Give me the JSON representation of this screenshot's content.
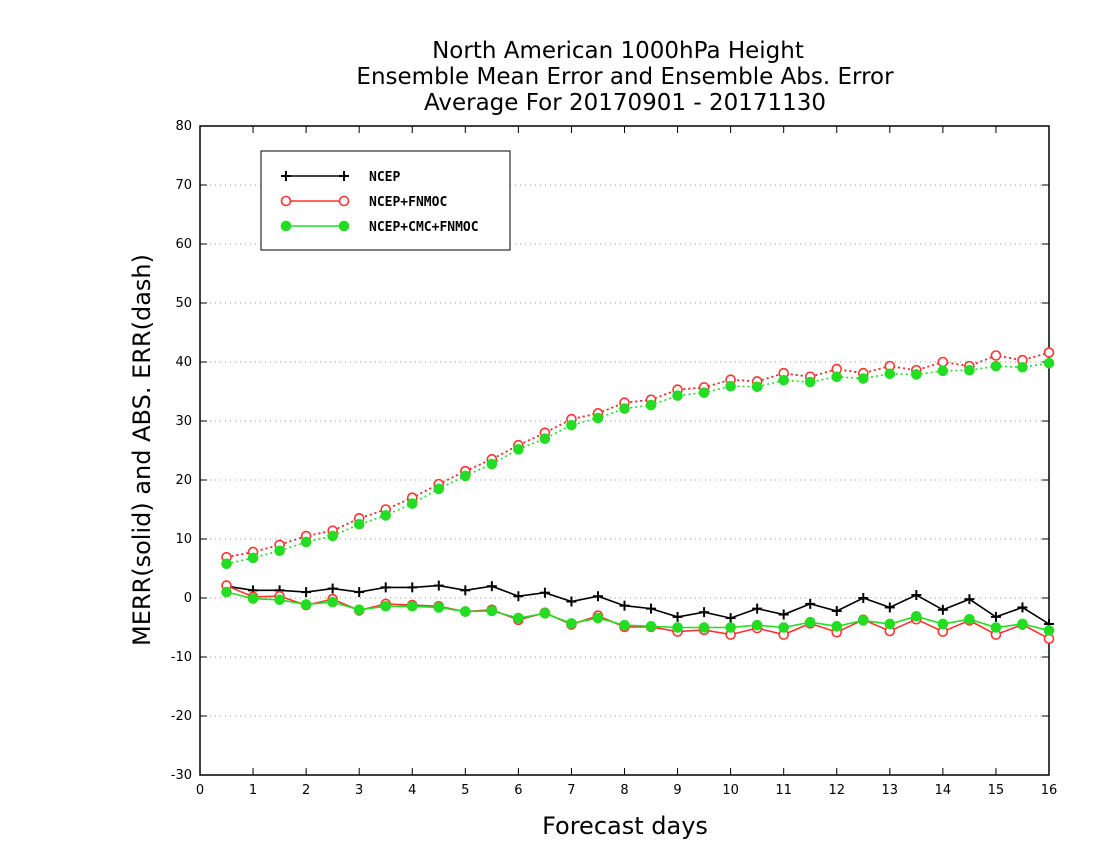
{
  "chart_data": {
    "type": "line",
    "title_lines": [
      "North American 1000hPa Height",
      "Ensemble Mean Error and Ensemble Abs. Error",
      "Average For 20170901 - 20171130"
    ],
    "xlabel": "Forecast days",
    "ylabel": "MERR(solid) and ABS. ERR(dash)",
    "xlim": [
      0,
      16
    ],
    "ylim": [
      -30,
      80
    ],
    "xticks": [
      "0",
      "1",
      "2",
      "3",
      "4",
      "5",
      "6",
      "7",
      "8",
      "9",
      "10",
      "11",
      "12",
      "13",
      "14",
      "15",
      "16"
    ],
    "yticks": [
      "80",
      "70",
      "60",
      "50",
      "40",
      "30",
      "20",
      "10",
      "0",
      "-10",
      "-20",
      "-30"
    ],
    "grid": true,
    "legend_position": "top-left",
    "x": [
      0.5,
      1.0,
      1.5,
      2.0,
      2.5,
      3.0,
      3.5,
      4.0,
      4.5,
      5.0,
      5.5,
      6.0,
      6.5,
      7.0,
      7.5,
      8.0,
      8.5,
      9.0,
      9.5,
      10.0,
      10.5,
      11.0,
      11.5,
      12.0,
      12.5,
      13.0,
      13.5,
      14.0,
      14.5,
      15.0,
      15.5,
      16.0
    ],
    "series": [
      {
        "name": "NCEP",
        "color": "#000000",
        "marker": "plus",
        "merr": [
          2.0,
          1.3,
          1.3,
          1.0,
          1.6,
          1.0,
          1.8,
          1.8,
          2.1,
          1.3,
          2.0,
          0.3,
          0.9,
          -0.6,
          0.3,
          -1.3,
          -1.8,
          -3.2,
          -2.4,
          -3.4,
          -1.8,
          -2.8,
          -1.0,
          -2.2,
          0.0,
          -1.6,
          0.5,
          -2.0,
          -0.2,
          -3.2,
          -1.6,
          -4.4
        ],
        "abs_err": [
          6.9,
          7.8,
          9.0,
          10.5,
          11.4,
          13.5,
          15.0,
          17.0,
          19.3,
          21.5,
          23.5,
          25.9,
          28.0,
          30.3,
          31.3,
          33.1,
          33.6,
          35.3,
          35.7,
          37.0,
          36.7,
          38.1,
          37.5,
          38.8,
          38.1,
          39.3,
          38.6,
          40.0,
          39.3,
          41.1,
          40.3,
          41.6
        ]
      },
      {
        "name": "NCEP+FNMOC",
        "color": "#ff3333",
        "marker": "open-circle",
        "merr": [
          2.1,
          0.2,
          0.3,
          -1.2,
          -0.2,
          -2.1,
          -1.0,
          -1.2,
          -1.4,
          -2.3,
          -2.0,
          -3.7,
          -2.5,
          -4.5,
          -3.0,
          -4.9,
          -4.9,
          -5.7,
          -5.4,
          -6.2,
          -5.1,
          -6.2,
          -4.3,
          -5.8,
          -3.7,
          -5.6,
          -3.6,
          -5.7,
          -3.8,
          -6.2,
          -4.5,
          -6.9
        ],
        "abs_err": [
          6.9,
          7.8,
          9.0,
          10.5,
          11.4,
          13.5,
          15.0,
          17.0,
          19.3,
          21.5,
          23.5,
          25.9,
          28.0,
          30.3,
          31.3,
          33.1,
          33.6,
          35.3,
          35.7,
          37.0,
          36.7,
          38.1,
          37.5,
          38.8,
          38.1,
          39.3,
          38.6,
          40.0,
          39.3,
          41.1,
          40.3,
          41.6
        ]
      },
      {
        "name": "NCEP+CMC+FNMOC",
        "color": "#22dd22",
        "marker": "filled-circle",
        "merr": [
          1.0,
          -0.1,
          -0.3,
          -1.1,
          -0.7,
          -2.0,
          -1.4,
          -1.4,
          -1.6,
          -2.3,
          -2.2,
          -3.4,
          -2.6,
          -4.3,
          -3.4,
          -4.6,
          -4.8,
          -5.0,
          -5.0,
          -5.0,
          -4.6,
          -5.0,
          -4.1,
          -4.8,
          -3.8,
          -4.4,
          -3.1,
          -4.4,
          -3.6,
          -5.0,
          -4.4,
          -5.5
        ],
        "abs_err": [
          5.8,
          6.8,
          8.0,
          9.5,
          10.5,
          12.5,
          14.0,
          16.0,
          18.5,
          20.7,
          22.7,
          25.2,
          27.0,
          29.3,
          30.5,
          32.1,
          32.7,
          34.3,
          34.8,
          35.9,
          35.8,
          36.9,
          36.6,
          37.5,
          37.2,
          38.0,
          37.9,
          38.5,
          38.6,
          39.3,
          39.1,
          39.8
        ]
      }
    ]
  }
}
